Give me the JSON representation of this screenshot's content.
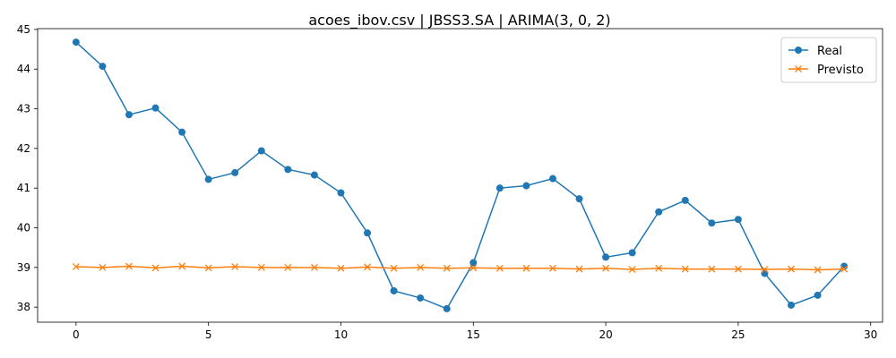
{
  "chart_data": {
    "type": "line",
    "title": "acoes_ibov.csv | JBSS3.SA | ARIMA(3, 0, 2)",
    "xlabel": "",
    "ylabel": "",
    "xlim": [
      -1.45,
      30.45
    ],
    "ylim": [
      37.62,
      45.02
    ],
    "xticks": [
      0,
      5,
      10,
      15,
      20,
      25,
      30
    ],
    "yticks": [
      38,
      39,
      40,
      41,
      42,
      43,
      44,
      45
    ],
    "grid": false,
    "legend_position": "top-right",
    "x": [
      0,
      1,
      2,
      3,
      4,
      5,
      6,
      7,
      8,
      9,
      10,
      11,
      12,
      13,
      14,
      15,
      16,
      17,
      18,
      19,
      20,
      21,
      22,
      23,
      24,
      25,
      26,
      27,
      28,
      29
    ],
    "series": [
      {
        "name": "Real",
        "color": "#1f77b4",
        "marker": "circle",
        "values": [
          44.68,
          44.07,
          42.85,
          43.02,
          42.41,
          41.22,
          41.39,
          41.94,
          41.47,
          41.33,
          40.88,
          39.87,
          38.41,
          38.23,
          37.96,
          39.12,
          41.0,
          41.06,
          41.24,
          40.73,
          39.26,
          39.37,
          40.4,
          40.69,
          40.12,
          40.21,
          38.85,
          38.05,
          38.3,
          39.03
        ]
      },
      {
        "name": "Previsto",
        "color": "#ff7f0e",
        "marker": "x",
        "values": [
          39.02,
          39.0,
          39.03,
          38.99,
          39.03,
          38.99,
          39.02,
          39.0,
          39.0,
          39.0,
          38.98,
          39.01,
          38.98,
          39.0,
          38.98,
          38.99,
          38.98,
          38.98,
          38.98,
          38.96,
          38.98,
          38.95,
          38.98,
          38.96,
          38.96,
          38.96,
          38.95,
          38.96,
          38.94,
          38.96
        ]
      }
    ]
  }
}
